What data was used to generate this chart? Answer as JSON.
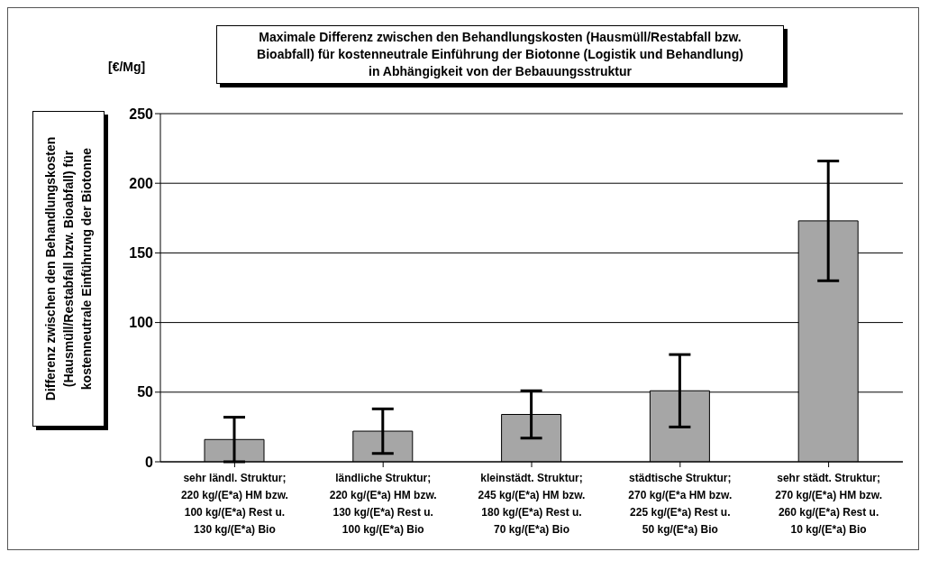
{
  "chart_data": {
    "type": "bar",
    "title": "Maximale Differenz zwischen den Behandlungskosten (Hausmüll/Restabfall bzw.\nBioabfall) für kostenneutrale Einführung der Biotonne (Logistik und Behandlung)\nin Abhängigkeit von der Bebauungsstruktur",
    "ylabel": "Differenz zwischen den Behandlungskosten\n(Hausmüll/Restabfall bzw. Bioabfall) für\nkostenneutrale Einführung der Biotonne",
    "annotations": [
      "[€/Mg]"
    ],
    "categories": [
      "sehr ländl. Struktur;\n220 kg/(E*a) HM bzw.\n100 kg/(E*a) Rest u.\n130 kg/(E*a) Bio",
      "ländliche Struktur;\n220 kg/(E*a) HM bzw.\n130 kg/(E*a) Rest u.\n100 kg/(E*a) Bio",
      "kleinstädt. Struktur;\n245 kg/(E*a) HM bzw.\n180 kg/(E*a) Rest u.\n70 kg/(E*a) Bio",
      "städtische Struktur;\n270 kg/(E*a HM bzw.\n225 kg/(E*a)  Rest u.\n50 kg/(E*a) Bio",
      "sehr städt. Struktur;\n270 kg/(E*a) HM bzw.\n260 kg/(E*a) Rest u.\n10 kg/(E*a) Bio"
    ],
    "values": [
      16,
      22,
      34,
      51,
      173
    ],
    "errors": [
      16,
      16,
      17,
      26,
      43
    ],
    "color": "#a6a6a6",
    "ylim": [
      0,
      250
    ],
    "yticks": [
      0,
      50,
      100,
      150,
      200,
      250
    ],
    "grid": "y",
    "legend": false
  }
}
